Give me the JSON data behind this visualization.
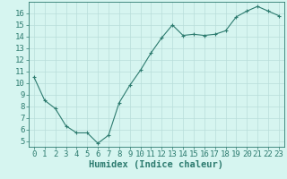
{
  "x": [
    0,
    1,
    2,
    3,
    4,
    5,
    6,
    7,
    8,
    9,
    10,
    11,
    12,
    13,
    14,
    15,
    16,
    17,
    18,
    19,
    20,
    21,
    22,
    23
  ],
  "y": [
    10.5,
    8.5,
    7.8,
    6.3,
    5.7,
    5.7,
    4.8,
    5.5,
    8.3,
    9.8,
    11.1,
    12.6,
    13.9,
    15.0,
    14.1,
    14.2,
    14.1,
    14.2,
    14.5,
    15.7,
    16.2,
    16.6,
    16.2,
    15.8
  ],
  "xlabel": "Humidex (Indice chaleur)",
  "line_color": "#2d7b6f",
  "marker_color": "#2d7b6f",
  "bg_color": "#d6f5f0",
  "grid_color": "#b8deda",
  "axis_color": "#2d7b6f",
  "tick_label_color": "#2d7b6f",
  "xlabel_color": "#2d7b6f",
  "ylim": [
    4.5,
    17.0
  ],
  "xlim": [
    -0.5,
    23.5
  ],
  "yticks": [
    5,
    6,
    7,
    8,
    9,
    10,
    11,
    12,
    13,
    14,
    15,
    16
  ],
  "xticks": [
    0,
    1,
    2,
    3,
    4,
    5,
    6,
    7,
    8,
    9,
    10,
    11,
    12,
    13,
    14,
    15,
    16,
    17,
    18,
    19,
    20,
    21,
    22,
    23
  ],
  "font_size": 6.5,
  "xlabel_font_size": 7.5
}
